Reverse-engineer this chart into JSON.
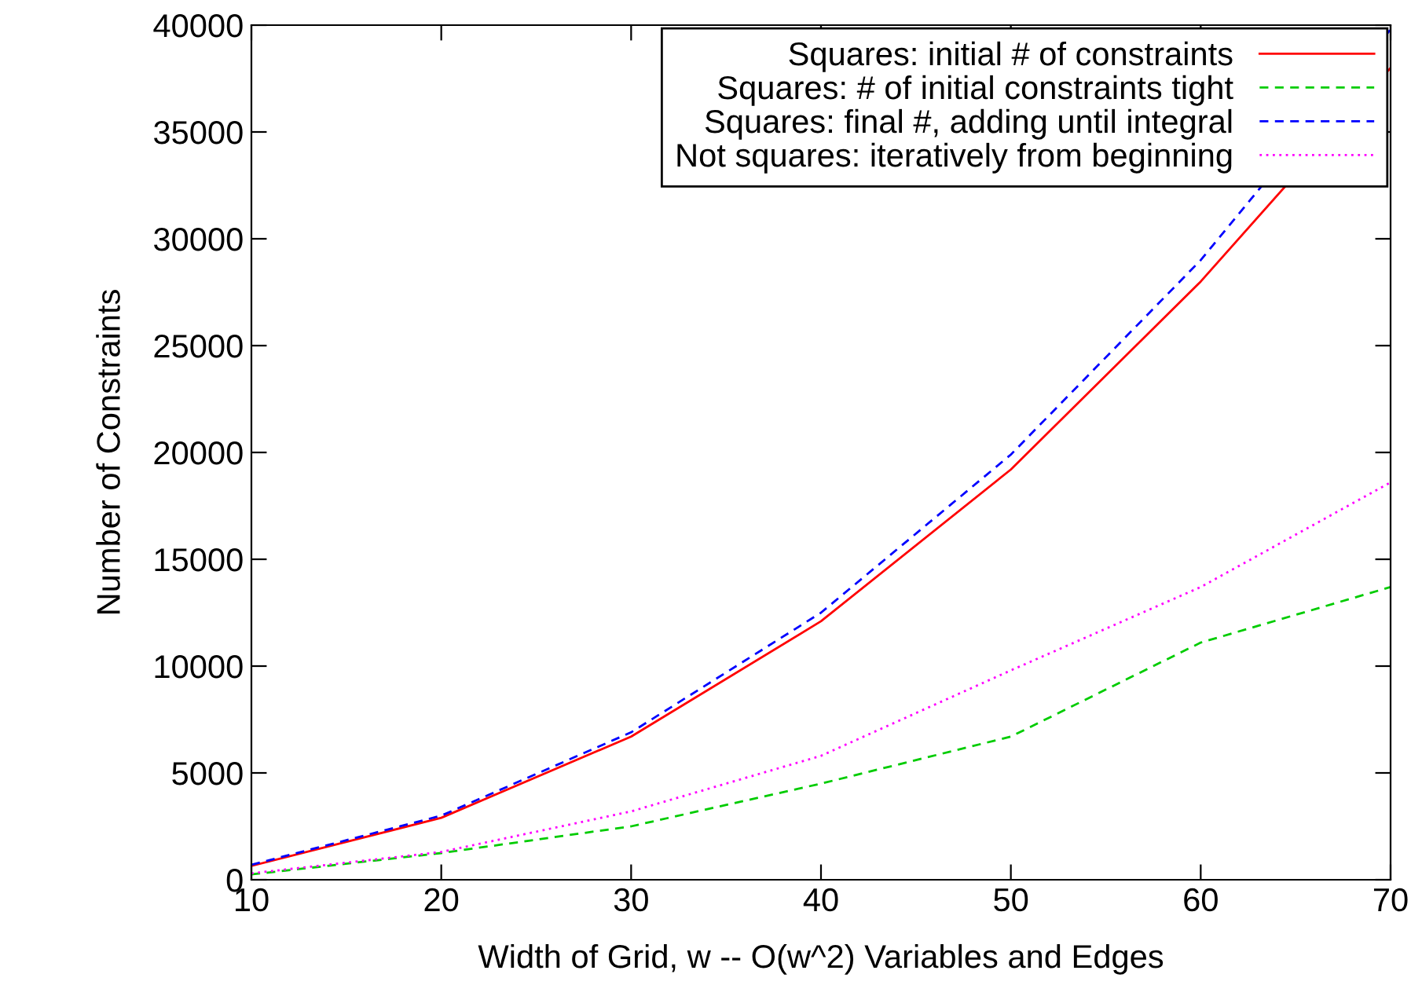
{
  "chart_data": {
    "type": "line",
    "xlabel": "Width of Grid, w -- O(w^2) Variables and Edges",
    "ylabel": "Number of Constraints",
    "x": [
      10,
      20,
      30,
      40,
      50,
      60,
      70
    ],
    "series": [
      {
        "name": "Squares: initial # of constraints",
        "color": "#ff0000",
        "line_style": "solid",
        "values": [
          650,
          2900,
          6700,
          12100,
          19200,
          28000,
          38000
        ]
      },
      {
        "name": "Squares: # of initial constraints tight",
        "color": "#00cc00",
        "line_style": "dashed",
        "values": [
          250,
          1250,
          2500,
          4500,
          6700,
          11100,
          13700
        ]
      },
      {
        "name": "Squares: final #, adding until integral",
        "color": "#0000ff",
        "line_style": "dashed",
        "values": [
          700,
          3000,
          6900,
          12500,
          19900,
          29000,
          39800
        ]
      },
      {
        "name": "Not squares: iteratively from beginning",
        "color": "#ff00ff",
        "line_style": "dotted",
        "values": [
          300,
          1300,
          3200,
          5800,
          9800,
          13700,
          18600
        ]
      }
    ],
    "xlim": [
      10,
      70
    ],
    "xticks": [
      10,
      20,
      30,
      40,
      50,
      60,
      70
    ],
    "ylim": [
      0,
      40000
    ],
    "yticks": [
      0,
      5000,
      10000,
      15000,
      20000,
      25000,
      30000,
      35000,
      40000
    ],
    "legend": "top right",
    "grid": false,
    "marker": "none"
  }
}
